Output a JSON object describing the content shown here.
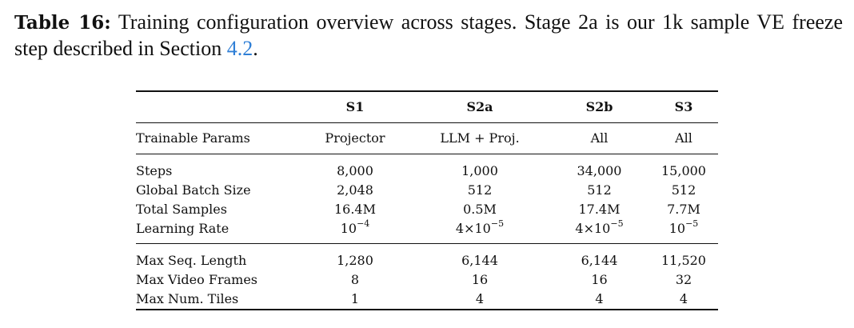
{
  "caption": {
    "label": "Table 16:",
    "text_before_ref": "Training configuration overview across stages. Stage 2a is our 1k sample VE freeze step described in Section",
    "ref": "4.2",
    "text_after_ref": "."
  },
  "table": {
    "columns": [
      "S1",
      "S2a",
      "S2b",
      "S3"
    ],
    "trainable": {
      "label": "Trainable Params",
      "values": [
        "Projector",
        "LLM + Proj.",
        "All",
        "All"
      ]
    },
    "group1": [
      {
        "label": "Steps",
        "values": [
          "8,000",
          "1,000",
          "34,000",
          "15,000"
        ]
      },
      {
        "label": "Global Batch Size",
        "values": [
          "2,048",
          "512",
          "512",
          "512"
        ]
      },
      {
        "label": "Total Samples",
        "values": [
          "16.4M",
          "0.5M",
          "17.4M",
          "7.7M"
        ]
      }
    ],
    "learning_rate": {
      "label": "Learning Rate",
      "values": [
        {
          "mantissa": "",
          "base": "10",
          "exp": "−4"
        },
        {
          "mantissa": "4×",
          "base": "10",
          "exp": "−5"
        },
        {
          "mantissa": "4×",
          "base": "10",
          "exp": "−5"
        },
        {
          "mantissa": "",
          "base": "10",
          "exp": "−5"
        }
      ]
    },
    "group2": [
      {
        "label": "Max Seq. Length",
        "values": [
          "1,280",
          "6,144",
          "6,144",
          "11,520"
        ]
      },
      {
        "label": "Max Video Frames",
        "values": [
          "8",
          "16",
          "16",
          "32"
        ]
      },
      {
        "label": "Max Num. Tiles",
        "values": [
          "1",
          "4",
          "4",
          "4"
        ]
      }
    ]
  }
}
